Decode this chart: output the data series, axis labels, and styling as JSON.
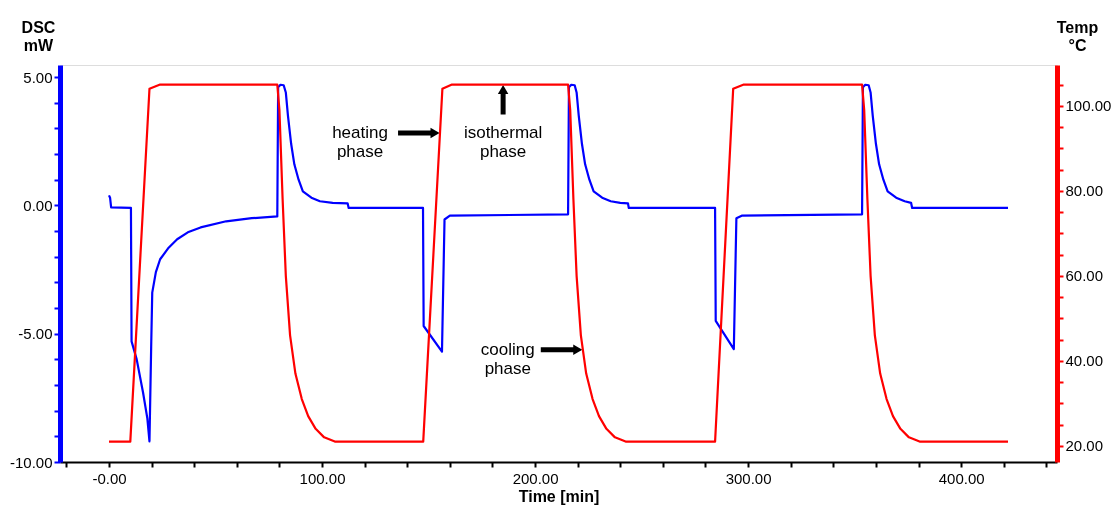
{
  "chart_data": {
    "type": "line",
    "xlabel": "Time [min]",
    "ylabel": "DSC mW",
    "y2label": "Temp °C",
    "xlim": [
      -23,
      445
    ],
    "ylim": [
      -10,
      5.47
    ],
    "y2lim": [
      16.2,
      109.6
    ],
    "xticks": [
      {
        "value": -20,
        "label": null
      },
      {
        "value": 0,
        "label": "-0.00"
      },
      {
        "value": 20,
        "label": null
      },
      {
        "value": 40,
        "label": null
      },
      {
        "value": 60,
        "label": null
      },
      {
        "value": 80,
        "label": null
      },
      {
        "value": 100,
        "label": "100.00"
      },
      {
        "value": 120,
        "label": null
      },
      {
        "value": 140,
        "label": null
      },
      {
        "value": 160,
        "label": null
      },
      {
        "value": 180,
        "label": null
      },
      {
        "value": 200,
        "label": "200.00"
      },
      {
        "value": 220,
        "label": null
      },
      {
        "value": 240,
        "label": null
      },
      {
        "value": 260,
        "label": null
      },
      {
        "value": 280,
        "label": null
      },
      {
        "value": 300,
        "label": "300.00"
      },
      {
        "value": 320,
        "label": null
      },
      {
        "value": 340,
        "label": null
      },
      {
        "value": 360,
        "label": null
      },
      {
        "value": 380,
        "label": null
      },
      {
        "value": 400,
        "label": "400.00"
      },
      {
        "value": 420,
        "label": null
      },
      {
        "value": 440,
        "label": null
      }
    ],
    "yticks": [
      {
        "value": -10,
        "label": "-10.00"
      },
      {
        "value": -9,
        "label": null
      },
      {
        "value": -8,
        "label": null
      },
      {
        "value": -7,
        "label": null
      },
      {
        "value": -6,
        "label": null
      },
      {
        "value": -5,
        "label": "-5.00"
      },
      {
        "value": -4,
        "label": null
      },
      {
        "value": -3,
        "label": null
      },
      {
        "value": -2,
        "label": null
      },
      {
        "value": -1,
        "label": null
      },
      {
        "value": 0,
        "label": "0.00"
      },
      {
        "value": 1,
        "label": null
      },
      {
        "value": 2,
        "label": null
      },
      {
        "value": 3,
        "label": null
      },
      {
        "value": 4,
        "label": null
      },
      {
        "value": 5,
        "label": "5.00"
      }
    ],
    "y2ticks": [
      {
        "value": 20,
        "label": "20.00"
      },
      {
        "value": 25,
        "label": null
      },
      {
        "value": 30,
        "label": null
      },
      {
        "value": 35,
        "label": null
      },
      {
        "value": 40,
        "label": "40.00"
      },
      {
        "value": 45,
        "label": null
      },
      {
        "value": 50,
        "label": null
      },
      {
        "value": 55,
        "label": null
      },
      {
        "value": 60,
        "label": "60.00"
      },
      {
        "value": 65,
        "label": null
      },
      {
        "value": 70,
        "label": null
      },
      {
        "value": 75,
        "label": null
      },
      {
        "value": 80,
        "label": "80.00"
      },
      {
        "value": 85,
        "label": null
      },
      {
        "value": 90,
        "label": null
      },
      {
        "value": 95,
        "label": null
      },
      {
        "value": 100,
        "label": "100.00"
      },
      {
        "value": 105,
        "label": null
      }
    ],
    "grid": false,
    "line_style": "solid",
    "series": [
      {
        "color": "#0000ff",
        "axis": "y",
        "x": [
          0,
          0.5,
          1,
          10.3,
          10.6,
          13,
          16,
          18,
          19,
          19.8,
          20.3,
          22,
          24,
          28,
          32,
          37,
          43,
          55,
          67,
          79,
          79.4,
          80.5,
          82,
          83,
          84,
          85.5,
          87,
          89,
          91,
          95,
          99,
          105,
          112,
          112.5,
          147.4,
          147.7,
          156.3,
          157.5,
          160,
          215.5,
          215.9,
          217,
          218.6,
          219.5,
          220.5,
          222,
          223.5,
          225.5,
          227.5,
          231.5,
          235.5,
          240,
          243.6,
          244,
          284.5,
          284.8,
          293.3,
          294.5,
          297,
          353.5,
          353.9,
          355,
          356.6,
          357.5,
          358.5,
          360,
          361.5,
          363.5,
          365.5,
          369.5,
          373.5,
          376.5,
          377,
          422
        ],
        "values": [
          0.39,
          0.3,
          -0.08,
          -0.1,
          -5.3,
          -6.0,
          -7.3,
          -8.3,
          -9.2,
          -5.5,
          -3.4,
          -2.6,
          -2.1,
          -1.65,
          -1.32,
          -1.05,
          -0.86,
          -0.62,
          -0.5,
          -0.43,
          4.6,
          4.7,
          4.68,
          4.4,
          3.5,
          2.4,
          1.6,
          1.0,
          0.55,
          0.3,
          0.16,
          0.1,
          0.08,
          -0.1,
          -0.1,
          -4.7,
          -5.7,
          -0.55,
          -0.4,
          -0.35,
          4.6,
          4.7,
          4.68,
          4.4,
          3.5,
          2.4,
          1.6,
          1.0,
          0.55,
          0.3,
          0.16,
          0.1,
          0.08,
          -0.1,
          -0.1,
          -4.5,
          -5.6,
          -0.5,
          -0.4,
          -0.35,
          4.6,
          4.7,
          4.68,
          4.4,
          3.5,
          2.4,
          1.6,
          1.0,
          0.55,
          0.3,
          0.16,
          0.1,
          -0.1,
          -0.1
        ]
      },
      {
        "color": "#ff0000",
        "axis": "y2",
        "x": [
          0,
          10,
          19,
          24,
          79,
          80,
          81.5,
          83,
          85,
          87.5,
          90.5,
          93.5,
          97,
          101,
          106,
          147.5,
          156.5,
          161,
          215.5,
          216.5,
          218,
          219.5,
          221.5,
          224,
          227,
          230,
          233.5,
          237.5,
          242.5,
          284.5,
          293,
          298,
          353.5,
          354.5,
          356,
          357.5,
          359.5,
          362,
          365,
          368,
          371.5,
          375.5,
          380.5,
          422
        ],
        "values": [
          21,
          21,
          104,
          105,
          105,
          99,
          78,
          60,
          46,
          37,
          31,
          27,
          24,
          22,
          21,
          21,
          104,
          105,
          105,
          99,
          78,
          60,
          46,
          37,
          31,
          27,
          24,
          22,
          21,
          21,
          104,
          105,
          105,
          99,
          78,
          60,
          46,
          37,
          31,
          27,
          24,
          22,
          21,
          21
        ]
      }
    ],
    "annotations": [
      {
        "text": "heating phase",
        "x": 155.4,
        "y": 2.82
      },
      {
        "text": "isothermal phase",
        "x": 185,
        "y": 4.71
      },
      {
        "text": "cooling phase",
        "x": 222.4,
        "y": -5.63
      }
    ]
  }
}
